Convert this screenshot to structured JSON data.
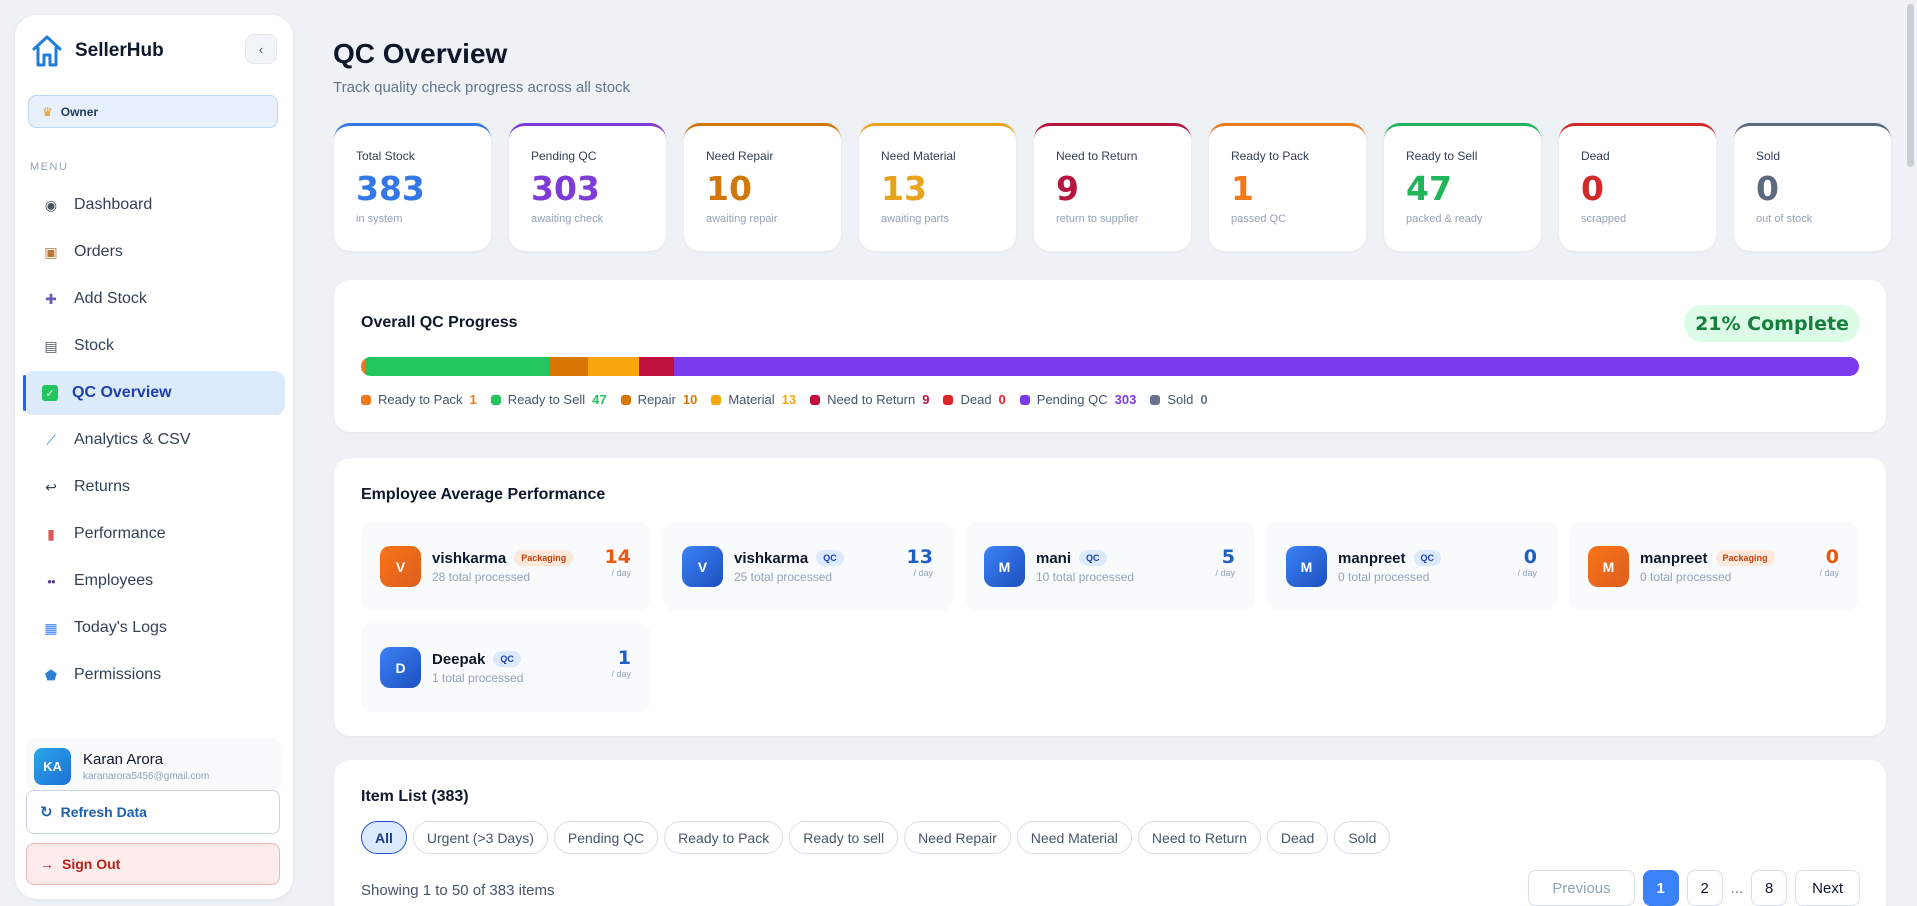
{
  "app": {
    "name": "SellerHub",
    "collapse_label": "‹"
  },
  "role": {
    "label": "Owner"
  },
  "menu_label": "MENU",
  "nav": [
    {
      "label": "Dashboard",
      "icon": "dashboard-icon",
      "active": false
    },
    {
      "label": "Orders",
      "icon": "package-icon",
      "active": false
    },
    {
      "label": "Add Stock",
      "icon": "plus-icon",
      "active": false
    },
    {
      "label": "Stock",
      "icon": "stock-icon",
      "active": false
    },
    {
      "label": "QC Overview",
      "icon": "check-icon",
      "active": true
    },
    {
      "label": "Analytics & CSV",
      "icon": "chart-icon",
      "active": false
    },
    {
      "label": "Returns",
      "icon": "return-icon",
      "active": false
    },
    {
      "label": "Performance",
      "icon": "bar-chart-icon",
      "active": false
    },
    {
      "label": "Employees",
      "icon": "users-icon",
      "active": false
    },
    {
      "label": "Today's Logs",
      "icon": "calendar-icon",
      "active": false
    },
    {
      "label": "Permissions",
      "icon": "shield-icon",
      "active": false
    }
  ],
  "user": {
    "initials": "KA",
    "name": "Karan Arora",
    "email": "karanarora5456@gmail.com"
  },
  "actions": {
    "refresh": "Refresh Data",
    "signout": "Sign Out"
  },
  "page": {
    "title": "QC Overview",
    "subtitle": "Track quality check progress across all stock"
  },
  "stats": [
    {
      "label": "Total Stock",
      "value": "383",
      "sub": "in system",
      "color": "#3478e5"
    },
    {
      "label": "Pending QC",
      "value": "303",
      "sub": "awaiting check",
      "color": "#7e3bd8"
    },
    {
      "label": "Need Repair",
      "value": "10",
      "sub": "awaiting repair",
      "color": "#d0780e"
    },
    {
      "label": "Need Material",
      "value": "13",
      "sub": "awaiting parts",
      "color": "#e9a31a"
    },
    {
      "label": "Need to Return",
      "value": "9",
      "sub": "return to supplier",
      "color": "#b5163f"
    },
    {
      "label": "Ready to Pack",
      "value": "1",
      "sub": "passed QC",
      "color": "#ee7a1c"
    },
    {
      "label": "Ready to Sell",
      "value": "47",
      "sub": "packed & ready",
      "color": "#20b559"
    },
    {
      "label": "Dead",
      "value": "0",
      "sub": "scrapped",
      "color": "#d22a2a"
    },
    {
      "label": "Sold",
      "value": "0",
      "sub": "out of stock",
      "color": "#5b6b7d"
    }
  ],
  "qc_progress": {
    "title": "Overall QC Progress",
    "complete_label": "21% Complete",
    "total": 383,
    "segments": [
      {
        "label": "Ready to Pack",
        "value": 1,
        "color": "#ee7a1c"
      },
      {
        "label": "Ready to Sell",
        "value": 47,
        "color": "#22c55e"
      },
      {
        "label": "Repair",
        "value": 10,
        "color": "#d97706"
      },
      {
        "label": "Material",
        "value": 13,
        "color": "#f5a70d"
      },
      {
        "label": "Need to Return",
        "value": 9,
        "color": "#be123c"
      },
      {
        "label": "Dead",
        "value": 0,
        "color": "#dc2626"
      },
      {
        "label": "Pending QC",
        "value": 303,
        "color": "#7c3aed"
      },
      {
        "label": "Sold",
        "value": 0,
        "color": "#64748b"
      }
    ]
  },
  "employee_perf": {
    "title": "Employee Average Performance",
    "employees": [
      {
        "initial": "V",
        "name": "vishkarma",
        "tag": "Packaging",
        "processed": "28 total processed",
        "rate": "14",
        "unit": "/ day",
        "theme": "orange"
      },
      {
        "initial": "V",
        "name": "vishkarma",
        "tag": "QC",
        "processed": "25 total processed",
        "rate": "13",
        "unit": "/ day",
        "theme": "blue"
      },
      {
        "initial": "M",
        "name": "mani",
        "tag": "QC",
        "processed": "10 total processed",
        "rate": "5",
        "unit": "/ day",
        "theme": "blue"
      },
      {
        "initial": "M",
        "name": "manpreet",
        "tag": "QC",
        "processed": "0 total processed",
        "rate": "0",
        "unit": "/ day",
        "theme": "blue"
      },
      {
        "initial": "M",
        "name": "manpreet",
        "tag": "Packaging",
        "processed": "0 total processed",
        "rate": "0",
        "unit": "/ day",
        "theme": "orange"
      },
      {
        "initial": "D",
        "name": "Deepak",
        "tag": "QC",
        "processed": "1 total processed",
        "rate": "1",
        "unit": "/ day",
        "theme": "blue"
      }
    ]
  },
  "item_list": {
    "title": "Item List (383)",
    "filters": [
      "All",
      "Urgent (>3 Days)",
      "Pending QC",
      "Ready to Pack",
      "Ready to sell",
      "Need Repair",
      "Need Material",
      "Need to Return",
      "Dead",
      "Sold"
    ],
    "active_filter": "All",
    "showing": "Showing 1 to 50 of 383 items",
    "pagination": {
      "previous": "Previous",
      "pages": [
        "1",
        "2"
      ],
      "ellipsis": "...",
      "last": "8",
      "next": "Next",
      "current": "1"
    }
  }
}
